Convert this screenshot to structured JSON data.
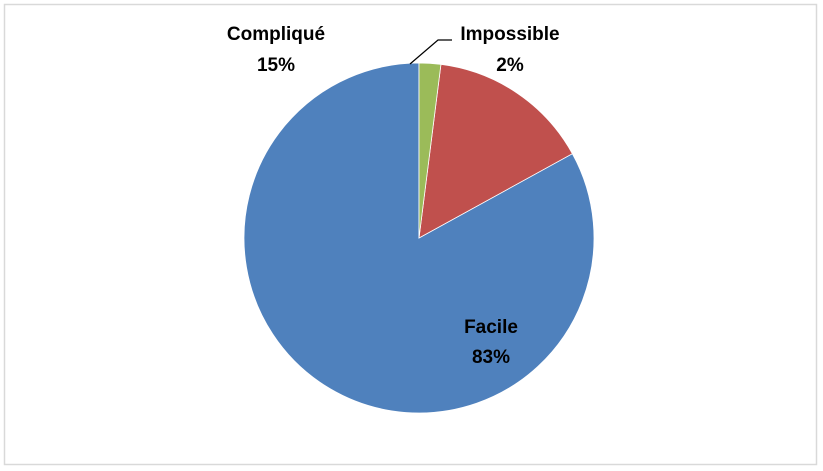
{
  "chart_data": {
    "type": "pie",
    "title": "",
    "slices": [
      {
        "label": "Facile",
        "value": 83,
        "value_label": "83%",
        "color": "#4F81BD"
      },
      {
        "label": "Compliqué",
        "value": 15,
        "value_label": "15%",
        "color": "#C0504D"
      },
      {
        "label": "Impossible",
        "value": 2,
        "value_label": "2%",
        "color": "#9BBB59"
      }
    ],
    "start_angle_deg": 0,
    "direction": "counterclockwise",
    "legend": "none",
    "border_color": "#D9D9D9"
  }
}
